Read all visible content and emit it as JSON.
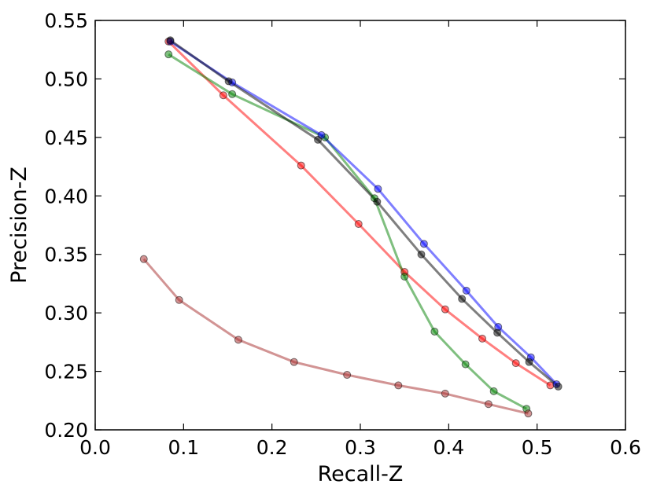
{
  "chart_data": {
    "type": "line",
    "title": "",
    "xlabel": "Recall-Z",
    "ylabel": "Precision-Z",
    "xlim": [
      0.0,
      0.6
    ],
    "ylim": [
      0.2,
      0.55
    ],
    "x_ticks": [
      "0.0",
      "0.1",
      "0.2",
      "0.3",
      "0.4",
      "0.5",
      "0.6"
    ],
    "y_ticks": [
      "0.20",
      "0.25",
      "0.30",
      "0.35",
      "0.40",
      "0.45",
      "0.50",
      "0.55"
    ],
    "grid": false,
    "legend": "none",
    "series": [
      {
        "color": "#ff0000",
        "points": [
          [
            0.083,
            0.532
          ],
          [
            0.145,
            0.486
          ],
          [
            0.233,
            0.426
          ],
          [
            0.298,
            0.376
          ],
          [
            0.35,
            0.335
          ],
          [
            0.396,
            0.303
          ],
          [
            0.438,
            0.278
          ],
          [
            0.476,
            0.257
          ],
          [
            0.515,
            0.238
          ]
        ]
      },
      {
        "color": "#008000",
        "points": [
          [
            0.083,
            0.521
          ],
          [
            0.155,
            0.487
          ],
          [
            0.26,
            0.45
          ],
          [
            0.316,
            0.398
          ],
          [
            0.35,
            0.331
          ],
          [
            0.384,
            0.284
          ],
          [
            0.419,
            0.256
          ],
          [
            0.451,
            0.233
          ],
          [
            0.488,
            0.218
          ]
        ]
      },
      {
        "color": "#0000ff",
        "points": [
          [
            0.085,
            0.532
          ],
          [
            0.155,
            0.497
          ],
          [
            0.256,
            0.452
          ],
          [
            0.32,
            0.406
          ],
          [
            0.372,
            0.359
          ],
          [
            0.42,
            0.319
          ],
          [
            0.456,
            0.288
          ],
          [
            0.493,
            0.262
          ],
          [
            0.522,
            0.239
          ]
        ]
      },
      {
        "color": "#000000",
        "points": [
          [
            0.085,
            0.533
          ],
          [
            0.151,
            0.498
          ],
          [
            0.252,
            0.448
          ],
          [
            0.319,
            0.395
          ],
          [
            0.369,
            0.35
          ],
          [
            0.415,
            0.312
          ],
          [
            0.455,
            0.283
          ],
          [
            0.491,
            0.258
          ],
          [
            0.524,
            0.237
          ]
        ]
      },
      {
        "color": "#a52a2a",
        "points": [
          [
            0.055,
            0.346
          ],
          [
            0.095,
            0.311
          ],
          [
            0.162,
            0.277
          ],
          [
            0.225,
            0.258
          ],
          [
            0.285,
            0.247
          ],
          [
            0.343,
            0.238
          ],
          [
            0.396,
            0.231
          ],
          [
            0.445,
            0.222
          ],
          [
            0.49,
            0.214
          ]
        ]
      }
    ]
  }
}
